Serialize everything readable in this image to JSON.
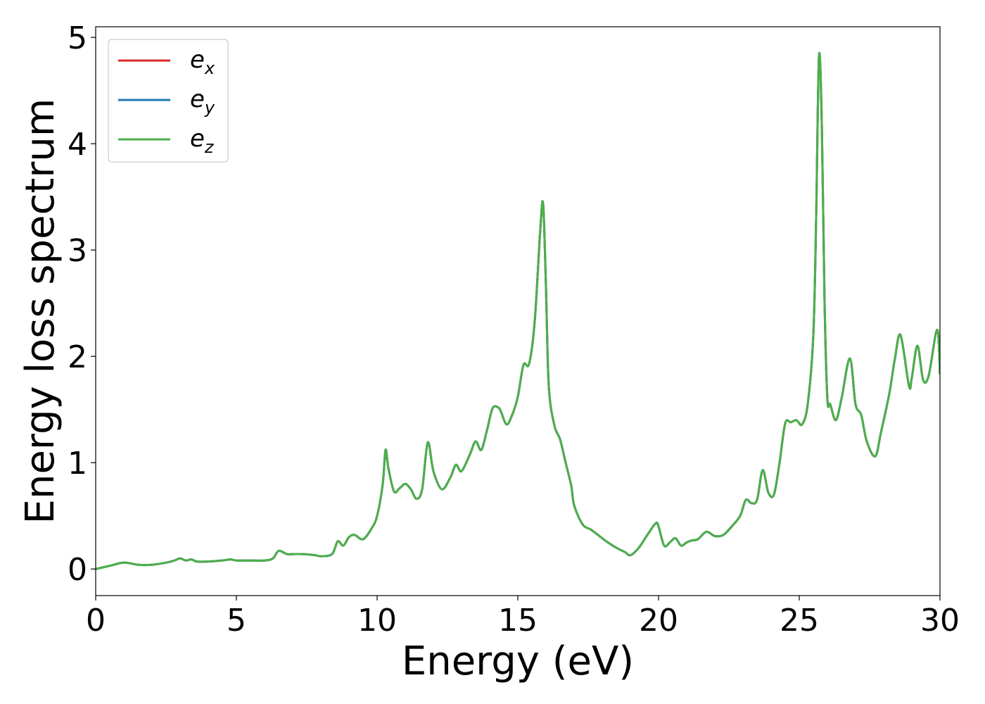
{
  "chart_data": {
    "type": "line",
    "title": "",
    "xlabel": "Energy (eV)",
    "ylabel": "Energy loss spectrum",
    "xlim": [
      0,
      30
    ],
    "ylim": [
      -0.25,
      5.1
    ],
    "xticks": [
      0,
      5,
      10,
      15,
      20,
      25,
      30
    ],
    "yticks": [
      0,
      1,
      2,
      3,
      4,
      5
    ],
    "grid": false,
    "legend_position": "top-left",
    "x": [
      0,
      0.5,
      1.0,
      1.5,
      2.0,
      2.5,
      2.8,
      3.0,
      3.2,
      3.4,
      3.6,
      4.0,
      4.5,
      4.8,
      5.0,
      5.5,
      6.0,
      6.3,
      6.5,
      6.8,
      7.0,
      7.4,
      7.8,
      8.0,
      8.4,
      8.6,
      8.8,
      9.0,
      9.2,
      9.5,
      9.8,
      10.0,
      10.2,
      10.3,
      10.4,
      10.6,
      10.8,
      11.0,
      11.2,
      11.4,
      11.6,
      11.8,
      12.0,
      12.3,
      12.6,
      12.8,
      13.0,
      13.3,
      13.5,
      13.7,
      13.9,
      14.1,
      14.3,
      14.4,
      14.6,
      14.8,
      15.0,
      15.2,
      15.4,
      15.6,
      15.8,
      15.9,
      16.0,
      16.1,
      16.3,
      16.5,
      16.7,
      16.9,
      17.0,
      17.3,
      17.6,
      17.9,
      18.2,
      18.5,
      18.8,
      19.0,
      19.3,
      19.6,
      19.9,
      20.0,
      20.2,
      20.4,
      20.6,
      20.8,
      21.0,
      21.2,
      21.4,
      21.7,
      22.0,
      22.3,
      22.6,
      22.9,
      23.1,
      23.3,
      23.5,
      23.7,
      23.9,
      24.1,
      24.3,
      24.5,
      24.7,
      24.9,
      25.1,
      25.3,
      25.5,
      25.6,
      25.7,
      25.8,
      25.9,
      26.0,
      26.1,
      26.3,
      26.5,
      26.8,
      27.0,
      27.2,
      27.4,
      27.7,
      27.9,
      28.2,
      28.4,
      28.6,
      28.9,
      29.0,
      29.2,
      29.4,
      29.6,
      29.9,
      30.0
    ],
    "series": [
      {
        "name": "e",
        "subscript": "x",
        "color": "#d62728",
        "values": [
          0.0,
          0.03,
          0.06,
          0.04,
          0.04,
          0.06,
          0.08,
          0.1,
          0.08,
          0.09,
          0.07,
          0.07,
          0.08,
          0.09,
          0.08,
          0.08,
          0.08,
          0.1,
          0.17,
          0.14,
          0.14,
          0.14,
          0.13,
          0.12,
          0.14,
          0.26,
          0.22,
          0.3,
          0.32,
          0.28,
          0.38,
          0.5,
          0.8,
          1.12,
          0.95,
          0.73,
          0.76,
          0.8,
          0.75,
          0.66,
          0.75,
          1.19,
          0.92,
          0.75,
          0.86,
          0.98,
          0.92,
          1.08,
          1.2,
          1.12,
          1.3,
          1.51,
          1.52,
          1.48,
          1.36,
          1.45,
          1.62,
          1.92,
          1.93,
          2.33,
          3.2,
          3.43,
          2.65,
          1.72,
          1.35,
          1.22,
          1.0,
          0.78,
          0.6,
          0.42,
          0.37,
          0.31,
          0.25,
          0.2,
          0.16,
          0.13,
          0.2,
          0.32,
          0.43,
          0.4,
          0.22,
          0.25,
          0.29,
          0.22,
          0.25,
          0.27,
          0.28,
          0.35,
          0.31,
          0.32,
          0.4,
          0.5,
          0.65,
          0.62,
          0.65,
          0.93,
          0.72,
          0.7,
          1.0,
          1.37,
          1.38,
          1.4,
          1.36,
          1.55,
          2.2,
          3.3,
          4.82,
          4.2,
          2.5,
          1.6,
          1.55,
          1.4,
          1.6,
          1.98,
          1.55,
          1.45,
          1.2,
          1.06,
          1.28,
          1.65,
          1.98,
          2.2,
          1.72,
          1.8,
          2.1,
          1.78,
          1.82,
          2.25,
          1.83
        ]
      },
      {
        "name": "e",
        "subscript": "y",
        "color": "#1f77b4",
        "values": [
          0.0,
          0.03,
          0.06,
          0.04,
          0.04,
          0.06,
          0.08,
          0.1,
          0.08,
          0.09,
          0.07,
          0.07,
          0.08,
          0.09,
          0.08,
          0.08,
          0.08,
          0.1,
          0.17,
          0.14,
          0.14,
          0.14,
          0.13,
          0.12,
          0.14,
          0.26,
          0.22,
          0.3,
          0.32,
          0.28,
          0.38,
          0.5,
          0.8,
          1.12,
          0.95,
          0.73,
          0.76,
          0.8,
          0.75,
          0.66,
          0.75,
          1.19,
          0.92,
          0.75,
          0.86,
          0.98,
          0.92,
          1.08,
          1.2,
          1.12,
          1.3,
          1.51,
          1.52,
          1.48,
          1.36,
          1.45,
          1.62,
          1.92,
          1.93,
          2.33,
          3.2,
          3.43,
          2.65,
          1.72,
          1.35,
          1.22,
          1.0,
          0.78,
          0.6,
          0.42,
          0.37,
          0.31,
          0.25,
          0.2,
          0.16,
          0.13,
          0.2,
          0.32,
          0.43,
          0.4,
          0.22,
          0.25,
          0.29,
          0.22,
          0.25,
          0.27,
          0.28,
          0.35,
          0.31,
          0.32,
          0.4,
          0.5,
          0.65,
          0.62,
          0.65,
          0.93,
          0.72,
          0.7,
          1.0,
          1.37,
          1.38,
          1.4,
          1.36,
          1.55,
          2.2,
          3.3,
          4.82,
          4.2,
          2.5,
          1.6,
          1.55,
          1.4,
          1.6,
          1.98,
          1.55,
          1.45,
          1.2,
          1.06,
          1.28,
          1.65,
          1.98,
          2.2,
          1.72,
          1.8,
          2.1,
          1.78,
          1.82,
          2.25,
          1.83
        ]
      },
      {
        "name": "e",
        "subscript": "z",
        "color": "#4daf4a",
        "values": [
          0.0,
          0.03,
          0.06,
          0.04,
          0.04,
          0.06,
          0.08,
          0.1,
          0.08,
          0.09,
          0.07,
          0.07,
          0.08,
          0.09,
          0.08,
          0.08,
          0.08,
          0.1,
          0.17,
          0.14,
          0.14,
          0.14,
          0.13,
          0.12,
          0.14,
          0.26,
          0.22,
          0.3,
          0.32,
          0.28,
          0.38,
          0.5,
          0.8,
          1.12,
          0.95,
          0.73,
          0.76,
          0.8,
          0.75,
          0.66,
          0.75,
          1.19,
          0.92,
          0.75,
          0.86,
          0.98,
          0.92,
          1.08,
          1.2,
          1.12,
          1.3,
          1.51,
          1.52,
          1.48,
          1.36,
          1.45,
          1.62,
          1.92,
          1.93,
          2.33,
          3.2,
          3.43,
          2.65,
          1.72,
          1.35,
          1.22,
          1.0,
          0.78,
          0.6,
          0.42,
          0.37,
          0.31,
          0.25,
          0.2,
          0.16,
          0.13,
          0.2,
          0.32,
          0.43,
          0.4,
          0.22,
          0.25,
          0.29,
          0.22,
          0.25,
          0.27,
          0.28,
          0.35,
          0.31,
          0.32,
          0.4,
          0.5,
          0.65,
          0.62,
          0.65,
          0.93,
          0.72,
          0.7,
          1.0,
          1.37,
          1.38,
          1.4,
          1.36,
          1.55,
          2.2,
          3.3,
          4.82,
          4.2,
          2.5,
          1.6,
          1.55,
          1.4,
          1.6,
          1.98,
          1.55,
          1.45,
          1.2,
          1.06,
          1.28,
          1.65,
          1.98,
          2.2,
          1.72,
          1.8,
          2.1,
          1.78,
          1.82,
          2.25,
          1.83
        ]
      }
    ]
  }
}
